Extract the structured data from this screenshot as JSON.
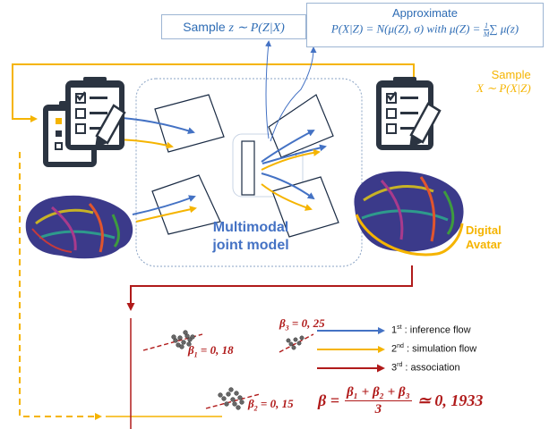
{
  "top_boxes": {
    "sample_z": {
      "prefix": "Sample ",
      "expr": "z ∼ P(Z|X)"
    },
    "approximate": {
      "title": "Approximate",
      "formula": "P(X|Z) = N(μ(Z), σ) with μ(Z) = ",
      "fraction_num": "1",
      "fraction_den": "M",
      "sum_part": "∑ μ(z)"
    }
  },
  "sample_x": {
    "title": "Sample",
    "expr": "X ∼ P(X|Z)"
  },
  "model_label": {
    "line1": "Multimodal",
    "line2": "joint model"
  },
  "digital_avatar": {
    "line1": "Digital",
    "line2": "Avatar"
  },
  "betas": {
    "b1": {
      "name": "β",
      "sub": "1",
      "value": " = 0, 18"
    },
    "b2": {
      "name": "β",
      "sub": "2",
      "value": " = 0, 15"
    },
    "b3": {
      "name": "β",
      "sub": "3",
      "value": " = 0, 25"
    }
  },
  "legend": [
    {
      "ordinal": "1",
      "sup": "st",
      "text": " : inference flow",
      "color": "#4472c4"
    },
    {
      "ordinal": "2",
      "sup": "nd",
      "text": " : simulation flow",
      "color": "#f5b400"
    },
    {
      "ordinal": "3",
      "sup": "rd",
      "text": " : association",
      "color": "#b01a1a"
    }
  ],
  "final_formula": {
    "lhs": "β =",
    "numerator": "β₁ + β₂ + β₃",
    "denominator": "3",
    "rhs": "≃ 0, 1933"
  },
  "colors": {
    "inference": "#4472c4",
    "simulation": "#f5b400",
    "association": "#b01a1a",
    "model_text": "#4472c4"
  },
  "icons": [
    "checklist-pencil-icon",
    "brain-icon"
  ]
}
